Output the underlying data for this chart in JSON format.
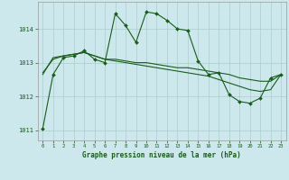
{
  "title": "Graphe pression niveau de la mer (hPa)",
  "bg_color": "#cce8ec",
  "grid_color": "#aacccc",
  "line_color": "#1a5c1a",
  "x_min": -0.5,
  "x_max": 23.5,
  "y_min": 1010.7,
  "y_max": 1014.8,
  "yticks": [
    1011,
    1012,
    1013,
    1014
  ],
  "xticks": [
    0,
    1,
    2,
    3,
    4,
    5,
    6,
    7,
    8,
    9,
    10,
    11,
    12,
    13,
    14,
    15,
    16,
    17,
    18,
    19,
    20,
    21,
    22,
    23
  ],
  "series1_x": [
    0,
    1,
    2,
    3,
    4,
    5,
    6,
    7,
    8,
    9,
    10,
    11,
    12,
    13,
    14,
    15,
    16,
    17,
    18,
    19,
    20,
    21,
    22,
    23
  ],
  "series1_y": [
    1011.05,
    1012.65,
    1013.15,
    1013.2,
    1013.35,
    1013.1,
    1013.0,
    1014.45,
    1014.1,
    1013.6,
    1014.5,
    1014.45,
    1014.25,
    1014.0,
    1013.95,
    1013.05,
    1012.65,
    1012.7,
    1012.05,
    1011.85,
    1011.8,
    1011.95,
    1012.55,
    1012.65
  ],
  "series2_x": [
    0,
    1,
    2,
    3,
    4,
    5,
    6,
    7,
    8,
    9,
    10,
    11,
    12,
    13,
    14,
    15,
    16,
    17,
    18,
    19,
    20,
    21,
    22,
    23
  ],
  "series2_y": [
    1012.65,
    1013.15,
    1013.2,
    1013.25,
    1013.3,
    1013.2,
    1013.1,
    1013.1,
    1013.05,
    1013.0,
    1013.0,
    1012.95,
    1012.9,
    1012.85,
    1012.85,
    1012.8,
    1012.75,
    1012.7,
    1012.65,
    1012.55,
    1012.5,
    1012.45,
    1012.45,
    1012.65
  ],
  "series3_x": [
    0,
    1,
    2,
    3,
    4,
    5,
    6,
    7,
    8,
    9,
    10,
    11,
    12,
    13,
    14,
    15,
    16,
    17,
    18,
    19,
    20,
    21,
    22,
    23
  ],
  "series3_y": [
    1012.7,
    1013.1,
    1013.2,
    1013.25,
    1013.3,
    1013.2,
    1013.1,
    1013.05,
    1013.0,
    1012.95,
    1012.9,
    1012.85,
    1012.8,
    1012.75,
    1012.7,
    1012.65,
    1012.6,
    1012.5,
    1012.4,
    1012.3,
    1012.2,
    1012.15,
    1012.2,
    1012.65
  ]
}
